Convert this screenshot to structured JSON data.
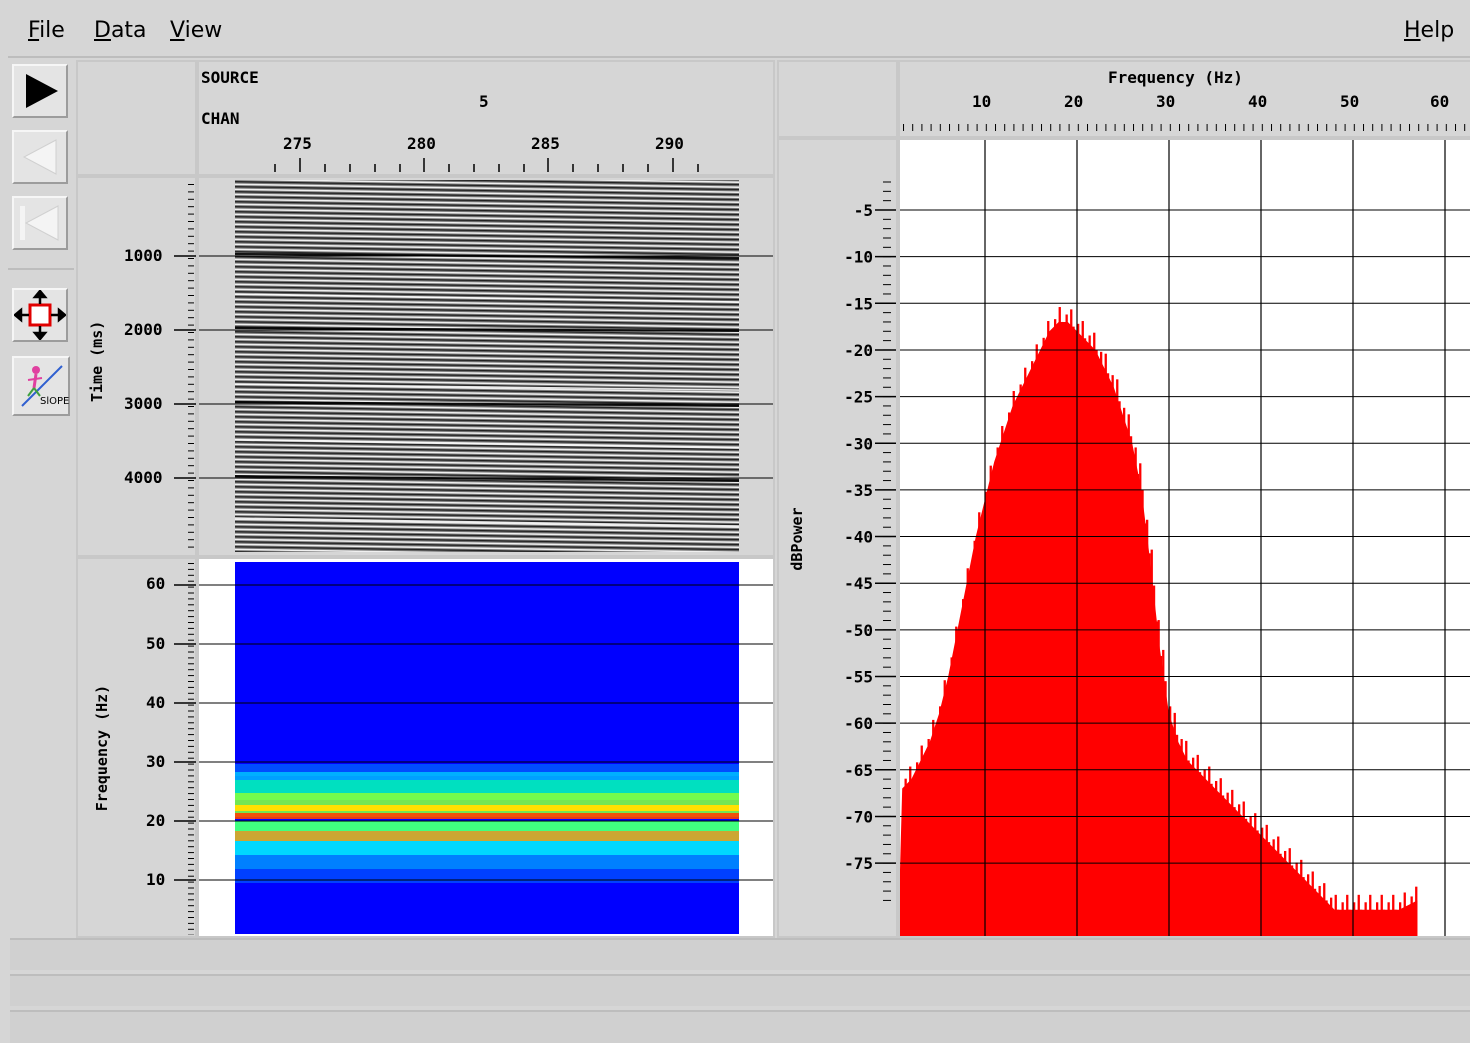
{
  "menus": {
    "file": "File",
    "data": "Data",
    "view": "View",
    "help": "Help"
  },
  "toolbar": {
    "tools": [
      "play-icon",
      "step-back-icon",
      "rewind-icon",
      "move-zoom-icon",
      "slope-icon"
    ],
    "slope_label": "SlOPE"
  },
  "header": {
    "source_label": "SOURCE",
    "chan_label": "CHAN",
    "source_value": "5",
    "chan_ticks": [
      "275",
      "280",
      "285",
      "290"
    ]
  },
  "seismic": {
    "ylabel": "Time (ms)",
    "yticks": [
      "1000",
      "2000",
      "3000",
      "4000"
    ]
  },
  "spectrogram": {
    "ylabel": "Frequency (Hz)",
    "yticks": [
      "60",
      "50",
      "40",
      "30",
      "20",
      "10"
    ]
  },
  "chart_data": {
    "type": "area",
    "title": "Frequency (Hz)",
    "xlabel": "Frequency (Hz)",
    "ylabel": "dBPower",
    "xticks": [
      "10",
      "20",
      "30",
      "40",
      "50",
      "60"
    ],
    "yticks": [
      "-5",
      "-10",
      "-15",
      "-20",
      "-25",
      "-30",
      "-35",
      "-40",
      "-45",
      "-50",
      "-55",
      "-60",
      "-65",
      "-70",
      "-75"
    ],
    "xlim": [
      1,
      63
    ],
    "ylim": [
      -80,
      0
    ],
    "grid": true,
    "color": "#ff0000",
    "x": [
      1,
      2,
      3,
      4,
      5,
      6,
      7,
      8,
      9,
      10,
      11,
      12,
      13,
      14,
      15,
      16,
      17,
      18,
      19,
      20,
      21,
      22,
      23,
      24,
      25,
      26,
      27,
      28,
      29,
      30,
      31,
      32,
      33,
      34,
      35,
      36,
      37,
      38,
      39,
      40,
      41,
      42,
      43,
      44,
      45,
      46,
      47,
      48,
      49,
      50,
      51,
      52,
      53,
      54,
      55,
      56,
      57
    ],
    "y": [
      -67,
      -66,
      -64,
      -62,
      -59,
      -55,
      -50,
      -45,
      -40,
      -36,
      -32,
      -29,
      -26,
      -24,
      -22,
      -20,
      -18,
      -17,
      -17,
      -18,
      -19,
      -20,
      -22,
      -24,
      -27,
      -30,
      -35,
      -43,
      -52,
      -59,
      -62,
      -64,
      -65,
      -66,
      -67,
      -68,
      -69,
      -70,
      -71,
      -72,
      -73,
      -74,
      -75,
      -76,
      -77,
      -78,
      -79,
      -80,
      -80,
      -80,
      -80,
      -80,
      -80,
      -80,
      -80,
      -79.5,
      -79
    ]
  }
}
